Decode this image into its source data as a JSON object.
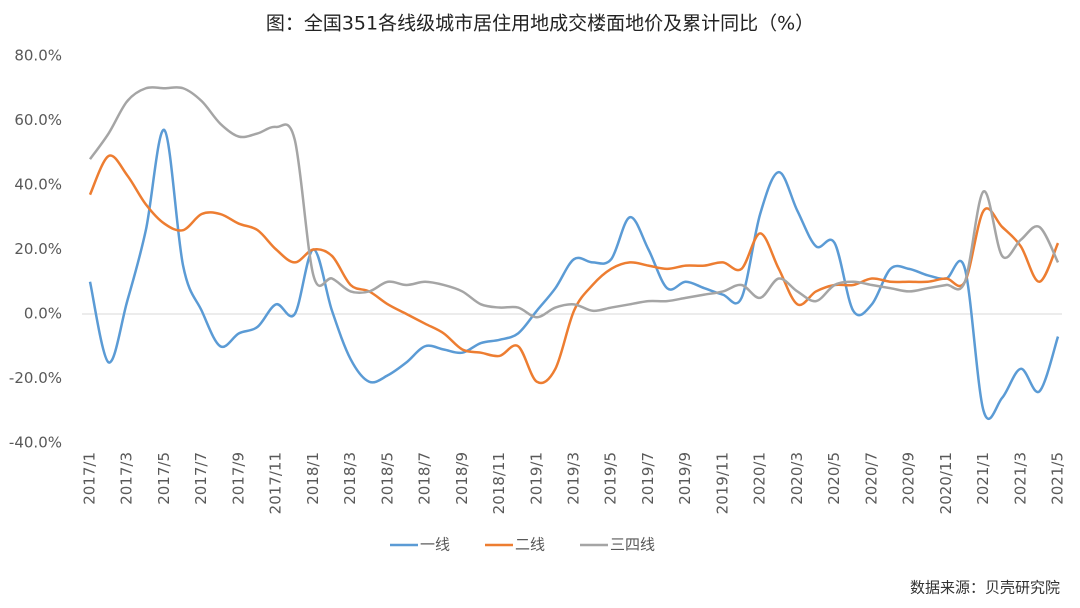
{
  "chart_data": {
    "type": "line",
    "title": "图：全国351各线级城市居住用地成交楼面地价及累计同比（%）",
    "source": "数据来源：贝壳研究院",
    "categories": [
      "2017/1",
      null,
      "2017/3",
      null,
      "2017/5",
      null,
      "2017/7",
      null,
      "2017/9",
      null,
      "2017/11",
      null,
      "2018/1",
      null,
      "2018/3",
      null,
      "2018/5",
      null,
      "2018/7",
      null,
      "2018/9",
      null,
      "2018/11",
      null,
      "2019/1",
      null,
      "2019/3",
      null,
      "2019/5",
      null,
      "2019/7",
      null,
      "2019/9",
      null,
      "2019/11",
      null,
      "2020/1",
      null,
      "2020/3",
      null,
      "2020/5",
      null,
      "2020/7",
      null,
      "2020/9",
      null,
      "2020/11",
      null,
      "2021/1",
      null,
      "2021/3",
      null,
      "2021/5"
    ],
    "series": [
      {
        "name": "一线",
        "color": "#5b9bd5",
        "values": [
          10,
          -15,
          4,
          26,
          57,
          15,
          1,
          -10,
          -6,
          -4,
          3,
          0,
          20,
          1,
          -14,
          -21,
          -19,
          -15,
          -10,
          -11,
          -12,
          -9,
          -8,
          -6,
          1,
          8,
          17,
          16,
          17,
          30,
          20,
          8,
          10,
          8,
          6,
          5,
          31,
          44,
          32,
          21,
          22,
          1,
          3,
          14,
          14,
          12,
          11,
          14,
          -30,
          -26,
          -17,
          -24,
          -7
        ]
      },
      {
        "name": "二线",
        "color": "#ed7d31",
        "values": [
          37,
          49,
          43,
          34,
          28,
          26,
          31,
          31,
          28,
          26,
          20,
          16,
          20,
          18,
          9,
          7,
          3,
          0,
          -3,
          -6,
          -11,
          -12,
          -13,
          -10,
          -21,
          -17,
          1,
          9,
          14,
          16,
          15,
          14,
          15,
          15,
          16,
          14,
          25,
          14,
          3,
          7,
          9,
          9,
          11,
          10,
          10,
          10,
          11,
          10,
          32,
          27,
          21,
          10,
          22
        ]
      },
      {
        "name": "三四线",
        "color": "#a5a5a5",
        "values": [
          48,
          56,
          66,
          70,
          70,
          70,
          66,
          59,
          55,
          56,
          58,
          54,
          12,
          11,
          7,
          7,
          10,
          9,
          10,
          9,
          7,
          3,
          2,
          2,
          -1,
          2,
          3,
          1,
          2,
          3,
          4,
          4,
          5,
          6,
          7,
          9,
          5,
          11,
          7,
          4,
          9,
          10,
          9,
          8,
          7,
          8,
          9,
          10,
          38,
          18,
          23,
          27,
          16
        ]
      }
    ],
    "ylim": [
      -40,
      80
    ],
    "yticks": [
      {
        "value": -40,
        "label": "-40.0%"
      },
      {
        "value": -20,
        "label": "-20.0%"
      },
      {
        "value": 0,
        "label": "0.0%"
      },
      {
        "value": 20,
        "label": "20.0%"
      },
      {
        "value": 40,
        "label": "40.0%"
      },
      {
        "value": 60,
        "label": "60.0%"
      },
      {
        "value": 80,
        "label": "80.0%"
      }
    ],
    "legend": "bottom"
  }
}
